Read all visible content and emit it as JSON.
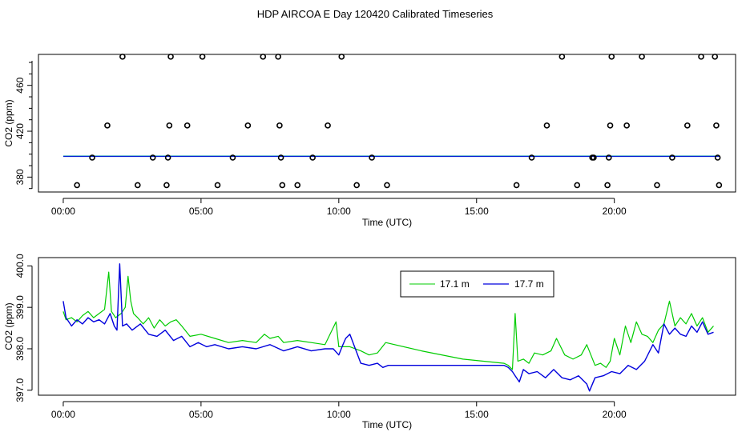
{
  "figure": {
    "title": "HDP AIRCOA E  Day 120420  Calibrated Timeseries"
  },
  "colors": {
    "series_17_1": "#00cc00",
    "series_17_7": "#0000dd",
    "reference": "#00a0a0",
    "points": "#000000"
  },
  "chart_data": [
    {
      "type": "scatter",
      "title": "HDP AIRCOA E  Day 120420  Calibrated Timeseries",
      "xlabel": "Time (UTC)",
      "ylabel": "CO2 (ppm)",
      "x_unit": "hours UTC",
      "xlim": [
        -0.9,
        24.4
      ],
      "ylim": [
        367,
        487
      ],
      "x_ticks": [
        0,
        5,
        10,
        15,
        20
      ],
      "x_tick_labels": [
        "00:00",
        "05:00",
        "10:00",
        "15:00",
        "20:00"
      ],
      "y_ticks": [
        380,
        420,
        460
      ],
      "y_tick_labels": [
        "380",
        "420",
        "460"
      ],
      "grid": false,
      "calibration_points": [
        {
          "x": 0.5,
          "y": 373
        },
        {
          "x": 1.05,
          "y": 397
        },
        {
          "x": 1.6,
          "y": 425
        },
        {
          "x": 2.15,
          "y": 485
        },
        {
          "x": 2.7,
          "y": 373
        },
        {
          "x": 3.25,
          "y": 397
        },
        {
          "x": 3.75,
          "y": 373
        },
        {
          "x": 3.8,
          "y": 397
        },
        {
          "x": 3.85,
          "y": 425
        },
        {
          "x": 3.9,
          "y": 485
        },
        {
          "x": 4.5,
          "y": 425
        },
        {
          "x": 5.05,
          "y": 485
        },
        {
          "x": 5.6,
          "y": 373
        },
        {
          "x": 6.15,
          "y": 397
        },
        {
          "x": 6.7,
          "y": 425
        },
        {
          "x": 7.25,
          "y": 485
        },
        {
          "x": 7.8,
          "y": 485
        },
        {
          "x": 7.85,
          "y": 425
        },
        {
          "x": 7.9,
          "y": 397
        },
        {
          "x": 7.95,
          "y": 373
        },
        {
          "x": 8.5,
          "y": 373
        },
        {
          "x": 9.05,
          "y": 397
        },
        {
          "x": 9.6,
          "y": 425
        },
        {
          "x": 10.1,
          "y": 485
        },
        {
          "x": 10.65,
          "y": 373
        },
        {
          "x": 11.2,
          "y": 397
        },
        {
          "x": 11.75,
          "y": 373
        },
        {
          "x": 16.45,
          "y": 373
        },
        {
          "x": 17.0,
          "y": 397
        },
        {
          "x": 17.55,
          "y": 425
        },
        {
          "x": 18.1,
          "y": 485
        },
        {
          "x": 18.65,
          "y": 373
        },
        {
          "x": 19.2,
          "y": 397
        },
        {
          "x": 19.25,
          "y": 397
        },
        {
          "x": 19.75,
          "y": 373
        },
        {
          "x": 19.8,
          "y": 397
        },
        {
          "x": 19.85,
          "y": 425
        },
        {
          "x": 19.9,
          "y": 485
        },
        {
          "x": 20.45,
          "y": 425
        },
        {
          "x": 21.0,
          "y": 485
        },
        {
          "x": 21.55,
          "y": 373
        },
        {
          "x": 22.1,
          "y": 397
        },
        {
          "x": 22.65,
          "y": 425
        },
        {
          "x": 23.15,
          "y": 485
        },
        {
          "x": 23.65,
          "y": 485
        },
        {
          "x": 23.7,
          "y": 425
        },
        {
          "x": 23.75,
          "y": 397
        },
        {
          "x": 23.8,
          "y": 373
        }
      ],
      "reference_line": {
        "x": [
          0,
          23.8
        ],
        "y": [
          398.1,
          398.1
        ]
      }
    },
    {
      "type": "line",
      "xlabel": "Time (UTC)",
      "ylabel": "CO2 (ppm)",
      "x_unit": "hours UTC",
      "xlim": [
        -0.9,
        24.4
      ],
      "ylim": [
        396.88,
        400.2
      ],
      "x_ticks": [
        0,
        5,
        10,
        15,
        20
      ],
      "x_tick_labels": [
        "00:00",
        "05:00",
        "10:00",
        "15:00",
        "20:00"
      ],
      "y_ticks": [
        397.0,
        398.0,
        399.0,
        400.0
      ],
      "y_tick_labels": [
        "397.0",
        "398.0",
        "399.0",
        "400.0"
      ],
      "grid": false,
      "legend": {
        "placement": "top-center"
      },
      "series": [
        {
          "name": "17.1 m",
          "x": [
            0.0,
            0.1,
            0.3,
            0.5,
            0.7,
            0.9,
            1.1,
            1.3,
            1.5,
            1.65,
            1.75,
            1.9,
            2.1,
            2.25,
            2.35,
            2.45,
            2.55,
            2.7,
            2.9,
            3.1,
            3.3,
            3.5,
            3.7,
            3.9,
            4.1,
            4.3,
            4.6,
            5.0,
            5.5,
            6.0,
            6.5,
            7.0,
            7.3,
            7.5,
            7.8,
            8.0,
            8.5,
            9.0,
            9.5,
            9.9,
            10.0,
            10.1,
            10.4,
            10.8,
            11.1,
            11.4,
            11.7,
            13.0,
            14.5,
            16.0,
            16.15,
            16.3,
            16.4,
            16.5,
            16.7,
            16.9,
            17.1,
            17.4,
            17.7,
            17.9,
            18.2,
            18.5,
            18.8,
            19.0,
            19.3,
            19.5,
            19.7,
            19.85,
            20.0,
            20.2,
            20.4,
            20.6,
            20.8,
            21.0,
            21.2,
            21.4,
            21.6,
            21.8,
            22.0,
            22.2,
            22.4,
            22.6,
            22.8,
            23.0,
            23.2,
            23.4,
            23.6
          ],
          "y": [
            398.9,
            398.7,
            398.75,
            398.65,
            398.8,
            398.9,
            398.75,
            398.85,
            398.95,
            399.85,
            398.9,
            398.75,
            398.85,
            399.0,
            399.75,
            399.15,
            398.85,
            398.75,
            398.6,
            398.75,
            398.5,
            398.7,
            398.55,
            398.65,
            398.7,
            398.55,
            398.3,
            398.35,
            398.25,
            398.15,
            398.2,
            398.15,
            398.35,
            398.25,
            398.3,
            398.15,
            398.2,
            398.15,
            398.1,
            398.65,
            398.05,
            398.05,
            398.05,
            397.95,
            397.85,
            397.9,
            398.15,
            397.95,
            397.75,
            397.65,
            397.6,
            397.5,
            398.85,
            397.7,
            397.75,
            397.65,
            397.9,
            397.85,
            397.95,
            398.25,
            397.85,
            397.75,
            397.85,
            398.1,
            397.6,
            397.65,
            397.55,
            397.7,
            398.25,
            397.85,
            398.55,
            398.15,
            398.65,
            398.35,
            398.3,
            398.15,
            398.45,
            398.6,
            399.15,
            398.55,
            398.75,
            398.6,
            398.85,
            398.55,
            398.75,
            398.4,
            398.55
          ]
        },
        {
          "name": "17.7 m",
          "x": [
            0.0,
            0.1,
            0.3,
            0.5,
            0.7,
            0.9,
            1.1,
            1.3,
            1.5,
            1.7,
            1.85,
            1.95,
            2.05,
            2.15,
            2.3,
            2.5,
            2.8,
            3.1,
            3.4,
            3.7,
            4.0,
            4.3,
            4.6,
            4.9,
            5.2,
            5.5,
            6.0,
            6.5,
            7.0,
            7.5,
            8.0,
            8.5,
            9.0,
            9.5,
            9.8,
            10.0,
            10.15,
            10.25,
            10.4,
            10.8,
            11.1,
            11.4,
            11.6,
            11.8,
            13.0,
            14.5,
            16.0,
            16.15,
            16.3,
            16.4,
            16.55,
            16.7,
            16.9,
            17.2,
            17.5,
            17.8,
            18.1,
            18.4,
            18.7,
            19.0,
            19.1,
            19.3,
            19.6,
            19.9,
            20.2,
            20.5,
            20.8,
            21.1,
            21.4,
            21.6,
            21.8,
            22.0,
            22.2,
            22.4,
            22.6,
            22.8,
            23.0,
            23.2,
            23.4,
            23.6
          ],
          "y": [
            399.15,
            398.75,
            398.55,
            398.7,
            398.6,
            398.75,
            398.65,
            398.7,
            398.6,
            398.85,
            398.55,
            398.45,
            400.05,
            398.55,
            398.6,
            398.45,
            398.6,
            398.35,
            398.3,
            398.45,
            398.2,
            398.3,
            398.05,
            398.15,
            398.05,
            398.1,
            398.0,
            398.05,
            398.0,
            398.1,
            397.95,
            398.05,
            397.95,
            398.0,
            398.0,
            397.85,
            398.1,
            398.25,
            398.35,
            397.65,
            397.6,
            397.65,
            397.55,
            397.6,
            397.6,
            397.6,
            397.6,
            397.55,
            397.45,
            397.35,
            397.2,
            397.5,
            397.4,
            397.45,
            397.3,
            397.5,
            397.3,
            397.25,
            397.35,
            397.15,
            396.98,
            397.3,
            397.35,
            397.45,
            397.4,
            397.6,
            397.5,
            397.7,
            398.1,
            397.9,
            398.6,
            398.35,
            398.5,
            398.35,
            398.3,
            398.55,
            398.4,
            398.65,
            398.35,
            398.4
          ]
        }
      ]
    }
  ]
}
